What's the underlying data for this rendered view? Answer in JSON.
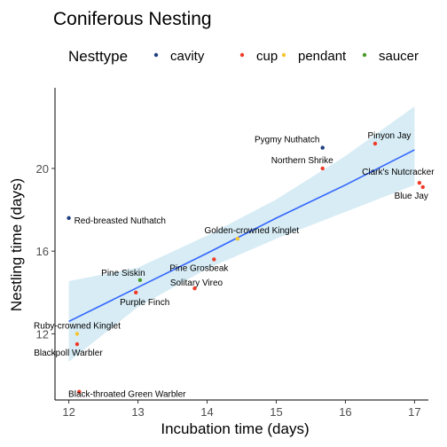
{
  "chart_data": {
    "type": "scatter",
    "title": "Coniferous Nesting",
    "xlabel": "Incubation time (days)",
    "ylabel": "Nestling time (days)",
    "xlim": [
      11.8,
      17.2
    ],
    "ylim": [
      8.8,
      23.9
    ],
    "xticks": [
      12,
      13,
      14,
      15,
      16,
      17
    ],
    "xtick_labels": [
      "12",
      "13",
      "14",
      "15",
      "16",
      "17"
    ],
    "yticks": [
      12,
      16,
      20
    ],
    "ytick_labels": [
      "12",
      "16",
      "20"
    ],
    "grid": false,
    "legend": {
      "title": "Nesttype",
      "position": "top",
      "entries": [
        {
          "label": "cavity",
          "color": "#1f3f80"
        },
        {
          "label": "cup",
          "color": "#f03c28"
        },
        {
          "label": "pendant",
          "color": "#f5c431"
        },
        {
          "label": "saucer",
          "color": "#4a9a2a"
        }
      ]
    },
    "points": [
      {
        "label": "Pygmy Nuthatch",
        "x": 15.67,
        "y": 21.0,
        "type": "cavity"
      },
      {
        "label": "Pinyon Jay",
        "x": 16.43,
        "y": 21.2,
        "type": "cup"
      },
      {
        "label": "Northern Shrike",
        "x": 15.67,
        "y": 20.0,
        "type": "cup"
      },
      {
        "label": "Clark's Nutcracker",
        "x": 17.07,
        "y": 19.3,
        "type": "cup"
      },
      {
        "label": "Blue Jay",
        "x": 17.12,
        "y": 19.1,
        "type": "cup"
      },
      {
        "label": "Red-breasted Nuthatch",
        "x": 12.0,
        "y": 17.6,
        "type": "cavity"
      },
      {
        "label": "Golden-crowned Kinglet",
        "x": 14.44,
        "y": 16.6,
        "type": "pendant"
      },
      {
        "label": "Pine Grosbeak",
        "x": 14.1,
        "y": 15.6,
        "type": "cup"
      },
      {
        "label": "Pine Siskin",
        "x": 13.03,
        "y": 14.6,
        "type": "saucer"
      },
      {
        "label": "Solitary Vireo",
        "x": 13.82,
        "y": 14.2,
        "type": "cup"
      },
      {
        "label": "Purple Finch",
        "x": 12.97,
        "y": 14.0,
        "type": "cup"
      },
      {
        "label": "Ruby-crowned Kinglet",
        "x": 12.12,
        "y": 12.0,
        "type": "pendant"
      },
      {
        "label": "Blackpoll Warbler",
        "x": 12.12,
        "y": 11.5,
        "type": "cup"
      },
      {
        "label": "Black-throated Green Warbler",
        "x": 12.15,
        "y": 9.2,
        "type": "cup"
      }
    ],
    "trend_line": {
      "color": "#3366ff",
      "fill_color": "#a6d4e8",
      "x": [
        12.0,
        13.0,
        14.0,
        15.0,
        16.0,
        17.0
      ],
      "fit": [
        12.6,
        14.25,
        15.9,
        17.6,
        19.2,
        20.9
      ],
      "lower": [
        10.65,
        13.3,
        15.15,
        16.6,
        17.9,
        19.2
      ],
      "upper": [
        14.55,
        15.2,
        16.75,
        18.5,
        20.6,
        23.0
      ]
    }
  }
}
